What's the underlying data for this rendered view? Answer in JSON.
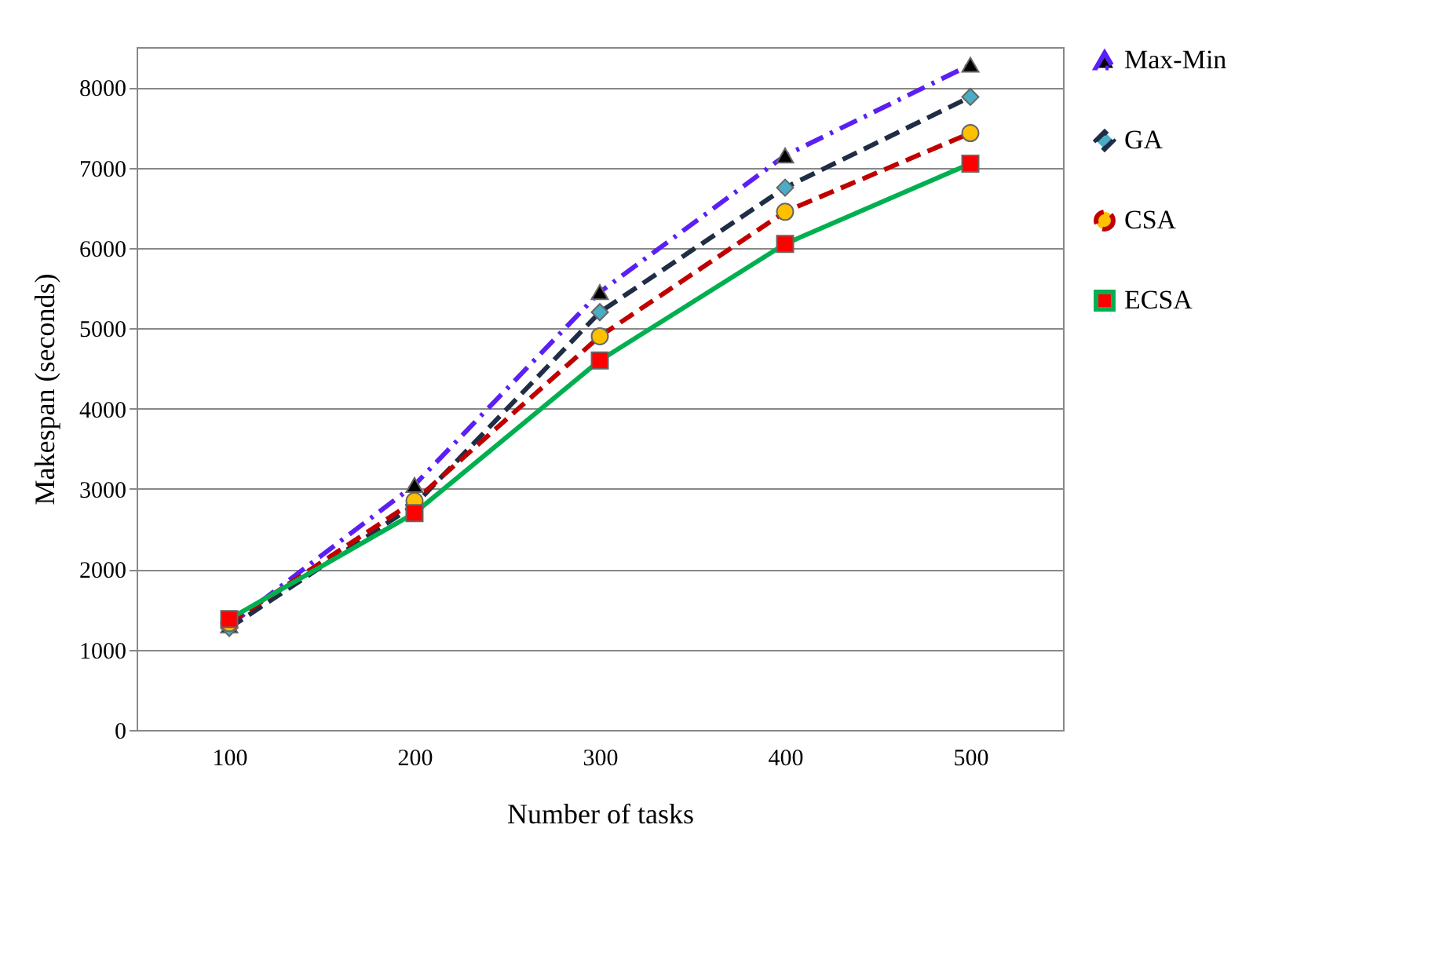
{
  "chart_data": {
    "type": "line",
    "xlabel": "Number of tasks",
    "ylabel": "Makespan (seconds)",
    "categories": [
      "100",
      "200",
      "300",
      "400",
      "500"
    ],
    "ylim": [
      0,
      8500
    ],
    "yticks": [
      0,
      1000,
      2000,
      3000,
      4000,
      5000,
      6000,
      7000,
      8000
    ],
    "grid": "y",
    "legend": "right",
    "series": [
      {
        "name": "Max-Min",
        "color": "#5b1ff5",
        "marker": "triangle",
        "line_style": "dashdot",
        "values": [
          1300,
          3050,
          5450,
          7150,
          8280
        ]
      },
      {
        "name": "GA",
        "color": "#1f2d45",
        "marker": "diamond",
        "line_style": "dashed",
        "values": [
          1270,
          2800,
          5200,
          6750,
          7880
        ]
      },
      {
        "name": "CSA",
        "color": "#c00000",
        "marker": "circle",
        "line_style": "dashed",
        "values": [
          1330,
          2850,
          4900,
          6450,
          7430
        ]
      },
      {
        "name": "ECSA",
        "color": "#00b050",
        "marker": "square",
        "line_style": "solid",
        "values": [
          1380,
          2700,
          4600,
          6050,
          7050
        ]
      }
    ]
  }
}
